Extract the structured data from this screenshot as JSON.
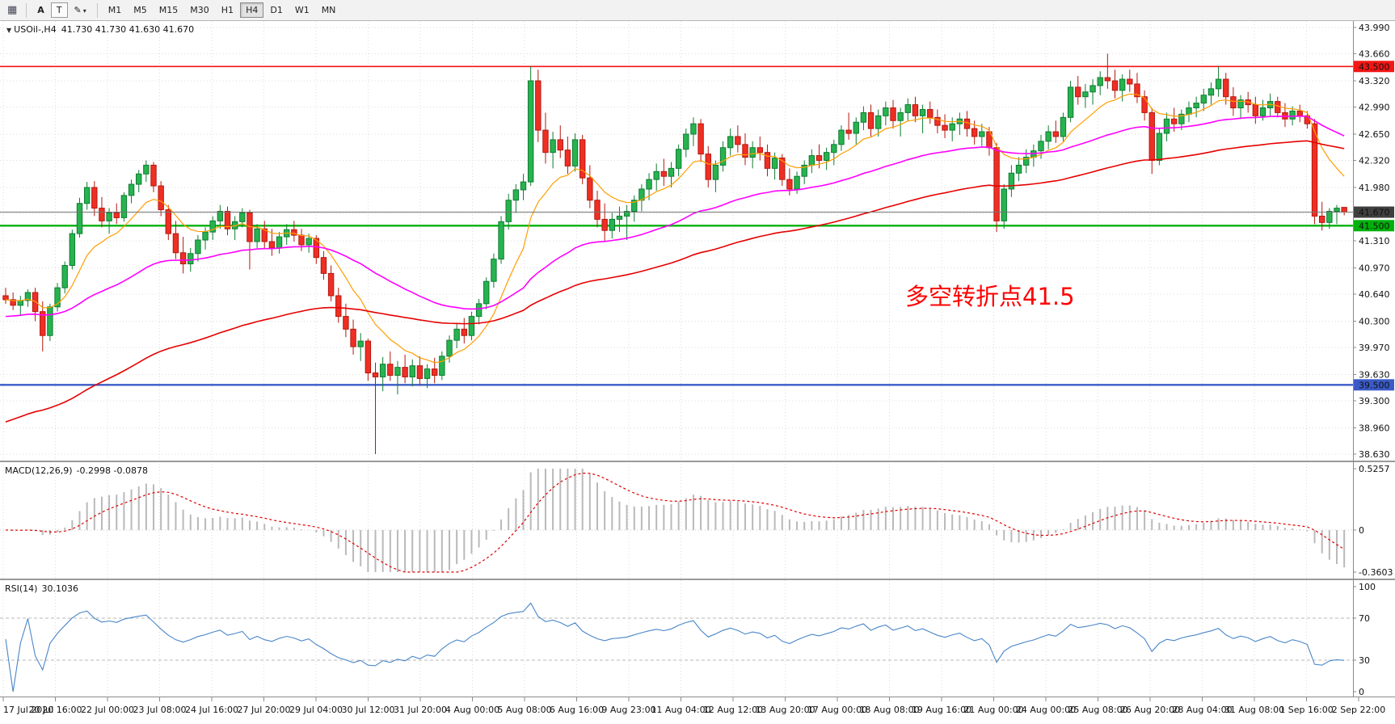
{
  "toolbar": {
    "icons": {
      "grid": "▦",
      "cursor": "A",
      "text": "T",
      "draw": "✎",
      "caret": "▾"
    },
    "timeframes": [
      "M1",
      "M5",
      "M15",
      "M30",
      "H1",
      "H4",
      "D1",
      "W1",
      "MN"
    ],
    "active_timeframe": "H4"
  },
  "chart": {
    "menu_glyph": "▼",
    "symbol_period": "USOil-,H4",
    "ohlc_text": "41.730 41.730 41.630 41.670",
    "annotation": {
      "text": "多空转折点41.5",
      "color": "#FF0000"
    }
  },
  "macd": {
    "label": "MACD(12,26,9)",
    "values": "-0.2998 -0.0878"
  },
  "rsi": {
    "label": "RSI(14)",
    "value": "30.1036"
  },
  "chart_data": {
    "type": "candlestick",
    "symbol": "USOil-",
    "timeframe": "H4",
    "ylim": [
      38.63,
      43.99
    ],
    "price_ticks": [
      "43.990",
      "43.660",
      "43.320",
      "42.990",
      "42.650",
      "42.320",
      "41.980",
      "41.650",
      "41.310",
      "40.970",
      "40.640",
      "40.300",
      "39.970",
      "39.630",
      "39.300",
      "38.960",
      "38.630"
    ],
    "time_labels": [
      "17 Jul 2020",
      "20 Jul 16:00",
      "22 Jul 00:00",
      "23 Jul 08:00",
      "24 Jul 16:00",
      "27 Jul 20:00",
      "29 Jul 04:00",
      "30 Jul 12:00",
      "31 Jul 20:00",
      "4 Aug 00:00",
      "5 Aug 08:00",
      "6 Aug 16:00",
      "9 Aug 23:00",
      "11 Aug 04:00",
      "12 Aug 12:00",
      "13 Aug 20:00",
      "17 Aug 00:00",
      "18 Aug 08:00",
      "19 Aug 16:00",
      "21 Aug 00:00",
      "24 Aug 00:00",
      "25 Aug 08:00",
      "26 Aug 20:00",
      "28 Aug 04:00",
      "31 Aug 08:00",
      "1 Sep 16:00",
      "2 Sep 22:00"
    ],
    "levels": [
      {
        "value": 43.5,
        "label": "43.500",
        "color": "#f21616",
        "width": 1.6
      },
      {
        "value": 41.5,
        "label": "41.500",
        "color": "#00b10b",
        "width": 2.4
      },
      {
        "value": 39.5,
        "label": "39.500",
        "color": "#3a5bc7",
        "width": 2.4
      }
    ],
    "current": {
      "price": 41.67,
      "label": "41.670",
      "badge": "#3f3f3f"
    },
    "colors": {
      "up": "#27b34f",
      "up_edge": "#0f7c32",
      "down": "#ef2f24",
      "down_edge": "#b5170e"
    },
    "moving_averages": [
      {
        "period": 10,
        "color": "#ff9e00",
        "seed": null,
        "width": 1.2
      },
      {
        "period": 45,
        "color": "#ff00ff",
        "seed": 40.35,
        "width": 1.6
      },
      {
        "period": 90,
        "color": "#e60000",
        "seed": 39.0,
        "width": 1.6
      }
    ],
    "indicators": {
      "macd": {
        "fast": 12,
        "slow": 26,
        "signal": 9,
        "axis_max": 0.5257,
        "axis_min": -0.3603,
        "axis_labels": [
          "0.5257",
          "0",
          "-0.3603"
        ],
        "current_values": [
          -0.2998,
          -0.0878
        ]
      },
      "rsi": {
        "period": 14,
        "levels": [
          70,
          30
        ],
        "axis_labels": [
          "100",
          "70",
          "30",
          "0"
        ],
        "current_value": 30.1036
      }
    },
    "ohlc": [
      [
        40.62,
        40.72,
        40.52,
        40.57
      ],
      [
        40.57,
        40.66,
        40.44,
        40.5
      ],
      [
        40.5,
        40.62,
        40.38,
        40.56
      ],
      [
        40.56,
        40.7,
        40.48,
        40.66
      ],
      [
        40.66,
        40.72,
        40.3,
        40.42
      ],
      [
        40.42,
        40.55,
        39.92,
        40.12
      ],
      [
        40.12,
        40.52,
        40.05,
        40.48
      ],
      [
        40.48,
        40.78,
        40.42,
        40.72
      ],
      [
        40.72,
        41.05,
        40.65,
        41.0
      ],
      [
        41.0,
        41.45,
        40.95,
        41.4
      ],
      [
        41.4,
        41.85,
        41.35,
        41.78
      ],
      [
        41.78,
        42.05,
        41.7,
        41.98
      ],
      [
        41.98,
        42.06,
        41.62,
        41.72
      ],
      [
        41.72,
        41.86,
        41.48,
        41.56
      ],
      [
        41.56,
        41.72,
        41.4,
        41.66
      ],
      [
        41.66,
        41.78,
        41.52,
        41.6
      ],
      [
        41.6,
        41.92,
        41.55,
        41.88
      ],
      [
        41.88,
        42.08,
        41.78,
        42.02
      ],
      [
        42.02,
        42.2,
        41.92,
        42.15
      ],
      [
        42.15,
        42.32,
        42.05,
        42.26
      ],
      [
        42.26,
        42.3,
        41.92,
        42.0
      ],
      [
        42.0,
        42.06,
        41.62,
        41.7
      ],
      [
        41.7,
        41.76,
        41.32,
        41.4
      ],
      [
        41.4,
        41.56,
        41.08,
        41.16
      ],
      [
        41.16,
        41.36,
        40.9,
        41.02
      ],
      [
        41.02,
        41.22,
        40.92,
        41.15
      ],
      [
        41.15,
        41.38,
        41.05,
        41.32
      ],
      [
        41.32,
        41.48,
        41.2,
        41.42
      ],
      [
        41.42,
        41.62,
        41.32,
        41.56
      ],
      [
        41.56,
        41.76,
        41.46,
        41.68
      ],
      [
        41.68,
        41.74,
        41.38,
        41.46
      ],
      [
        41.46,
        41.62,
        41.32,
        41.55
      ],
      [
        41.55,
        41.72,
        41.48,
        41.66
      ],
      [
        41.66,
        41.7,
        40.95,
        41.3
      ],
      [
        41.3,
        41.52,
        41.22,
        41.46
      ],
      [
        41.46,
        41.56,
        41.22,
        41.3
      ],
      [
        41.3,
        41.46,
        41.12,
        41.22
      ],
      [
        41.22,
        41.42,
        41.15,
        41.36
      ],
      [
        41.36,
        41.52,
        41.26,
        41.45
      ],
      [
        41.45,
        41.56,
        41.3,
        41.38
      ],
      [
        41.38,
        41.46,
        41.18,
        41.26
      ],
      [
        41.26,
        41.4,
        41.16,
        41.34
      ],
      [
        41.34,
        41.38,
        41.02,
        41.1
      ],
      [
        41.1,
        41.18,
        40.82,
        40.9
      ],
      [
        40.9,
        41.0,
        40.55,
        40.62
      ],
      [
        40.62,
        40.72,
        40.28,
        40.36
      ],
      [
        40.36,
        40.52,
        40.1,
        40.2
      ],
      [
        40.2,
        40.32,
        39.88,
        39.98
      ],
      [
        39.98,
        40.15,
        39.8,
        40.05
      ],
      [
        40.05,
        40.08,
        39.55,
        39.65
      ],
      [
        39.65,
        39.78,
        38.63,
        39.6
      ],
      [
        39.6,
        39.85,
        39.42,
        39.76
      ],
      [
        39.76,
        39.92,
        39.55,
        39.62
      ],
      [
        39.62,
        39.8,
        39.38,
        39.72
      ],
      [
        39.72,
        39.88,
        39.52,
        39.6
      ],
      [
        39.6,
        39.82,
        39.48,
        39.74
      ],
      [
        39.74,
        39.86,
        39.5,
        39.58
      ],
      [
        39.58,
        39.76,
        39.46,
        39.7
      ],
      [
        39.7,
        39.84,
        39.52,
        39.62
      ],
      [
        39.62,
        39.92,
        39.56,
        39.86
      ],
      [
        39.86,
        40.12,
        39.78,
        40.06
      ],
      [
        40.06,
        40.28,
        39.96,
        40.2
      ],
      [
        40.2,
        40.34,
        40.02,
        40.12
      ],
      [
        40.12,
        40.42,
        40.06,
        40.36
      ],
      [
        40.36,
        40.58,
        40.26,
        40.52
      ],
      [
        40.52,
        40.85,
        40.45,
        40.8
      ],
      [
        40.8,
        41.15,
        40.72,
        41.08
      ],
      [
        41.08,
        41.62,
        41.02,
        41.55
      ],
      [
        41.55,
        41.9,
        41.45,
        41.82
      ],
      [
        41.82,
        42.02,
        41.66,
        41.95
      ],
      [
        41.95,
        42.15,
        41.82,
        42.05
      ],
      [
        42.05,
        43.5,
        42.0,
        43.32
      ],
      [
        43.32,
        43.46,
        42.55,
        42.7
      ],
      [
        42.7,
        42.92,
        42.28,
        42.42
      ],
      [
        42.42,
        42.68,
        42.22,
        42.58
      ],
      [
        42.58,
        42.76,
        42.35,
        42.45
      ],
      [
        42.45,
        42.62,
        42.15,
        42.25
      ],
      [
        42.25,
        42.66,
        42.18,
        42.58
      ],
      [
        42.58,
        42.64,
        42.02,
        42.1
      ],
      [
        42.1,
        42.26,
        41.72,
        41.82
      ],
      [
        41.82,
        41.94,
        41.48,
        41.58
      ],
      [
        41.58,
        41.78,
        41.3,
        41.44
      ],
      [
        41.44,
        41.66,
        41.34,
        41.58
      ],
      [
        41.58,
        41.74,
        41.42,
        41.62
      ],
      [
        41.62,
        41.76,
        41.32,
        41.68
      ],
      [
        41.68,
        41.88,
        41.55,
        41.82
      ],
      [
        41.82,
        42.02,
        41.68,
        41.96
      ],
      [
        41.96,
        42.16,
        41.82,
        42.08
      ],
      [
        42.08,
        42.28,
        41.94,
        42.18
      ],
      [
        42.18,
        42.34,
        42.0,
        42.12
      ],
      [
        42.12,
        42.3,
        41.98,
        42.22
      ],
      [
        42.22,
        42.52,
        42.12,
        42.46
      ],
      [
        42.46,
        42.72,
        42.36,
        42.65
      ],
      [
        42.65,
        42.86,
        42.5,
        42.78
      ],
      [
        42.78,
        42.84,
        42.3,
        42.4
      ],
      [
        42.4,
        42.5,
        41.98,
        42.08
      ],
      [
        42.08,
        42.32,
        41.92,
        42.26
      ],
      [
        42.26,
        42.56,
        42.18,
        42.48
      ],
      [
        42.48,
        42.72,
        42.38,
        42.62
      ],
      [
        42.62,
        42.76,
        42.42,
        42.52
      ],
      [
        42.52,
        42.66,
        42.26,
        42.36
      ],
      [
        42.36,
        42.56,
        42.22,
        42.48
      ],
      [
        42.48,
        42.62,
        42.32,
        42.42
      ],
      [
        42.42,
        42.52,
        42.12,
        42.22
      ],
      [
        42.22,
        42.42,
        42.08,
        42.35
      ],
      [
        42.35,
        42.4,
        42.0,
        42.08
      ],
      [
        42.08,
        42.22,
        41.88,
        41.96
      ],
      [
        41.96,
        42.18,
        41.9,
        42.12
      ],
      [
        42.12,
        42.32,
        42.02,
        42.26
      ],
      [
        42.26,
        42.46,
        42.16,
        42.38
      ],
      [
        42.38,
        42.52,
        42.22,
        42.32
      ],
      [
        42.32,
        42.48,
        42.2,
        42.42
      ],
      [
        42.42,
        42.58,
        42.26,
        42.52
      ],
      [
        42.52,
        42.76,
        42.44,
        42.7
      ],
      [
        42.7,
        42.92,
        42.58,
        42.66
      ],
      [
        42.66,
        42.86,
        42.52,
        42.8
      ],
      [
        42.8,
        43.0,
        42.7,
        42.92
      ],
      [
        42.92,
        43.02,
        42.62,
        42.72
      ],
      [
        42.72,
        42.96,
        42.62,
        42.88
      ],
      [
        42.88,
        43.06,
        42.76,
        42.98
      ],
      [
        42.98,
        43.08,
        42.72,
        42.82
      ],
      [
        42.82,
        42.98,
        42.62,
        42.92
      ],
      [
        42.92,
        43.1,
        42.82,
        43.02
      ],
      [
        43.02,
        43.12,
        42.8,
        42.88
      ],
      [
        42.88,
        43.02,
        42.66,
        42.96
      ],
      [
        42.96,
        43.06,
        42.78,
        42.86
      ],
      [
        42.86,
        42.96,
        42.66,
        42.76
      ],
      [
        42.76,
        42.9,
        42.6,
        42.7
      ],
      [
        42.7,
        42.86,
        42.56,
        42.78
      ],
      [
        42.78,
        42.92,
        42.64,
        42.84
      ],
      [
        42.84,
        42.94,
        42.62,
        42.72
      ],
      [
        42.72,
        42.82,
        42.52,
        42.62
      ],
      [
        42.62,
        42.78,
        42.5,
        42.68
      ],
      [
        42.68,
        42.74,
        42.38,
        42.48
      ],
      [
        42.48,
        42.54,
        41.42,
        41.56
      ],
      [
        41.56,
        42.02,
        41.46,
        41.96
      ],
      [
        41.96,
        42.26,
        41.86,
        42.16
      ],
      [
        42.16,
        42.36,
        42.06,
        42.26
      ],
      [
        42.26,
        42.46,
        42.16,
        42.36
      ],
      [
        42.36,
        42.52,
        42.24,
        42.44
      ],
      [
        42.44,
        42.64,
        42.34,
        42.56
      ],
      [
        42.56,
        42.76,
        42.46,
        42.68
      ],
      [
        42.68,
        42.82,
        42.54,
        42.62
      ],
      [
        42.62,
        42.92,
        42.56,
        42.86
      ],
      [
        42.86,
        43.32,
        42.8,
        43.24
      ],
      [
        43.24,
        43.38,
        43.02,
        43.12
      ],
      [
        43.12,
        43.28,
        42.98,
        43.18
      ],
      [
        43.18,
        43.34,
        43.02,
        43.26
      ],
      [
        43.26,
        43.44,
        43.14,
        43.36
      ],
      [
        43.36,
        43.66,
        43.22,
        43.32
      ],
      [
        43.32,
        43.46,
        43.1,
        43.2
      ],
      [
        43.2,
        43.4,
        43.06,
        43.34
      ],
      [
        43.34,
        43.46,
        43.18,
        43.28
      ],
      [
        43.28,
        43.42,
        43.04,
        43.12
      ],
      [
        43.12,
        43.2,
        42.82,
        42.92
      ],
      [
        42.92,
        42.98,
        42.15,
        42.32
      ],
      [
        42.32,
        42.72,
        42.26,
        42.66
      ],
      [
        42.66,
        42.92,
        42.56,
        42.84
      ],
      [
        42.84,
        42.98,
        42.68,
        42.78
      ],
      [
        42.78,
        42.96,
        42.7,
        42.9
      ],
      [
        42.9,
        43.06,
        42.8,
        42.98
      ],
      [
        42.98,
        43.12,
        42.86,
        43.04
      ],
      [
        43.04,
        43.22,
        42.94,
        43.14
      ],
      [
        43.14,
        43.3,
        43.02,
        43.22
      ],
      [
        43.22,
        43.5,
        43.12,
        43.34
      ],
      [
        43.34,
        43.42,
        43.02,
        43.12
      ],
      [
        43.12,
        43.24,
        42.88,
        42.98
      ],
      [
        42.98,
        43.14,
        42.84,
        43.08
      ],
      [
        43.08,
        43.18,
        42.92,
        43.02
      ],
      [
        43.02,
        43.12,
        42.78,
        42.88
      ],
      [
        42.88,
        43.08,
        42.82,
        42.98
      ],
      [
        42.98,
        43.16,
        42.88,
        43.06
      ],
      [
        43.06,
        43.12,
        42.86,
        42.92
      ],
      [
        42.92,
        43.04,
        42.74,
        42.84
      ],
      [
        42.84,
        43.0,
        42.76,
        42.94
      ],
      [
        42.94,
        43.02,
        42.8,
        42.88
      ],
      [
        42.88,
        42.94,
        42.72,
        42.78
      ],
      [
        42.78,
        42.84,
        41.52,
        41.62
      ],
      [
        41.62,
        41.8,
        41.44,
        41.54
      ],
      [
        41.54,
        41.72,
        41.46,
        41.68
      ],
      [
        41.68,
        41.76,
        41.52,
        41.72
      ],
      [
        41.73,
        41.73,
        41.63,
        41.67
      ]
    ]
  }
}
